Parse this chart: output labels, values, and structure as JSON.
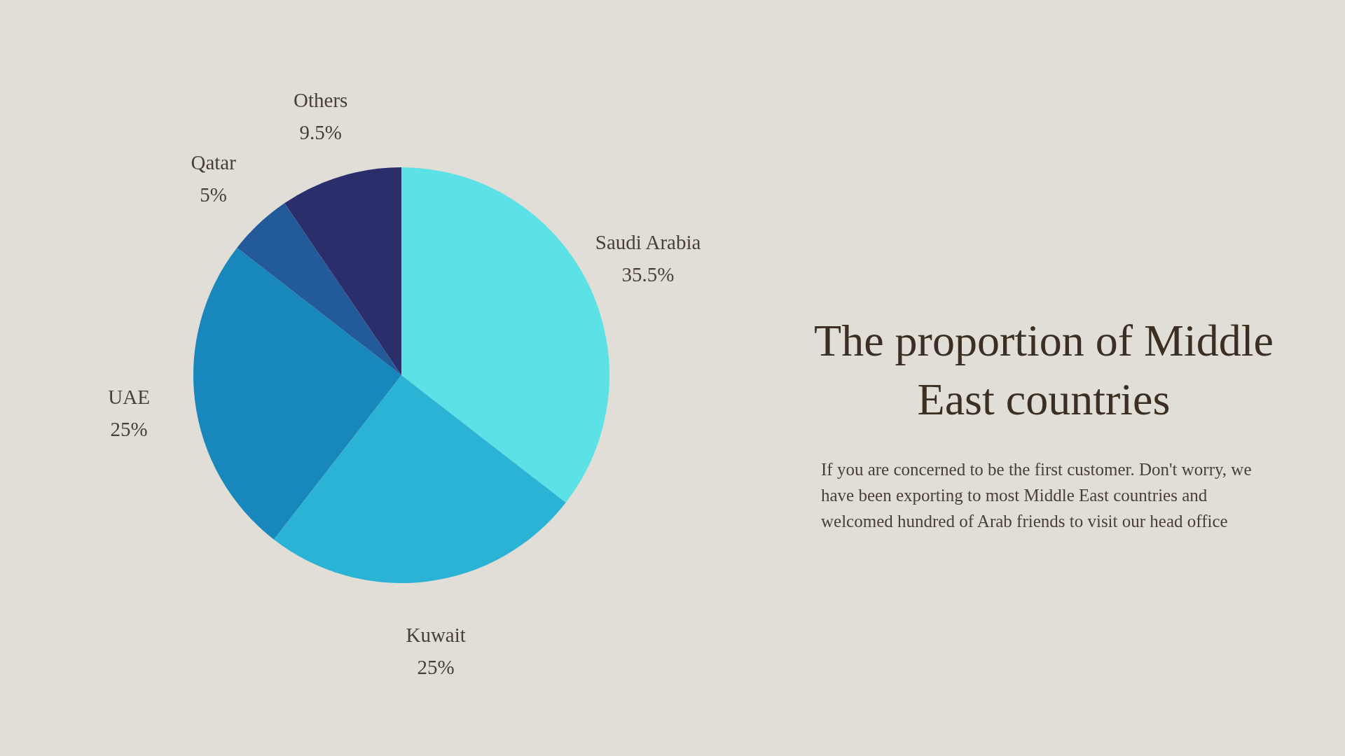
{
  "chart_data": {
    "type": "pie",
    "title": "The proportion of Middle East countries",
    "categories": [
      "Saudi Arabia",
      "Kuwait",
      "UAE",
      "Qatar",
      "Others"
    ],
    "values": [
      35.5,
      25,
      25,
      5,
      9.5
    ],
    "value_labels": [
      "35.5%",
      "25%",
      "25%",
      "5%",
      "9.5%"
    ],
    "colors": [
      "#5ce1e6",
      "#2bb3d6",
      "#1888bc",
      "#235b9a",
      "#2a2e6b"
    ],
    "annotations": [
      "If you are concerned to be the first customer. Don't worry, we have been exporting to most Middle East countries and welcomed hundred of Arab friends to visit our head office"
    ]
  }
}
